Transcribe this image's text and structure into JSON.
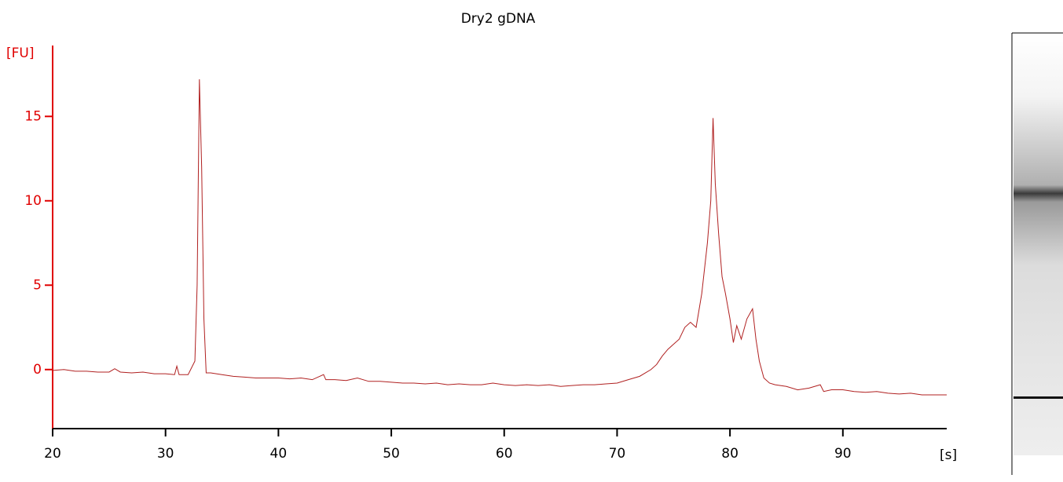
{
  "chart_data": {
    "type": "line",
    "title": "Dry2 gDNA",
    "y_label": "[FU]",
    "x_label": "[s]",
    "xlim": [
      20,
      99.2
    ],
    "ylim": [
      -3.5,
      19.2
    ],
    "xticks": [
      20,
      30,
      40,
      50,
      60,
      70,
      80,
      90
    ],
    "yticks": [
      0,
      5,
      10,
      15
    ],
    "axis_color": "#e00000",
    "series": [
      {
        "color": "#b02020",
        "x": [
          20,
          21,
          22,
          23,
          24,
          25,
          25.5,
          26,
          27,
          28,
          29,
          30,
          30.8,
          31,
          31.2,
          32,
          32.6,
          32.8,
          33,
          33.2,
          33.4,
          33.6,
          34,
          35,
          36,
          37,
          38,
          39,
          40,
          41,
          42,
          43,
          44,
          44.2,
          45,
          46,
          47,
          48,
          49,
          50,
          51,
          52,
          53,
          54,
          55,
          56,
          57,
          58,
          59,
          60,
          61,
          62,
          63,
          64,
          65,
          66,
          67,
          68,
          69,
          70,
          71,
          72,
          73,
          73.5,
          74,
          74.5,
          75,
          75.5,
          76,
          76.5,
          77,
          77.5,
          78,
          78.3,
          78.5,
          78.7,
          79,
          79.3,
          79.6,
          80,
          80.3,
          80.6,
          81,
          81.5,
          82,
          82.3,
          82.6,
          83,
          83.5,
          84,
          85,
          86,
          87,
          88,
          88.3,
          89,
          90,
          91,
          92,
          93,
          94,
          95,
          96,
          97,
          98,
          99.2
        ],
        "values": [
          -0.05,
          0,
          -0.1,
          -0.1,
          -0.15,
          -0.15,
          0.05,
          -0.15,
          -0.2,
          -0.15,
          -0.25,
          -0.25,
          -0.3,
          0.2,
          -0.3,
          -0.3,
          0.5,
          5,
          17.2,
          12,
          3,
          -0.2,
          -0.2,
          -0.3,
          -0.4,
          -0.45,
          -0.5,
          -0.5,
          -0.5,
          -0.55,
          -0.5,
          -0.6,
          -0.3,
          -0.6,
          -0.6,
          -0.65,
          -0.5,
          -0.7,
          -0.7,
          -0.75,
          -0.8,
          -0.8,
          -0.85,
          -0.8,
          -0.9,
          -0.85,
          -0.9,
          -0.9,
          -0.8,
          -0.9,
          -0.95,
          -0.9,
          -0.95,
          -0.9,
          -1,
          -0.95,
          -0.9,
          -0.9,
          -0.85,
          -0.8,
          -0.6,
          -0.4,
          0,
          0.3,
          0.8,
          1.2,
          1.5,
          1.8,
          2.5,
          2.8,
          2.5,
          4.5,
          7.5,
          10,
          14.9,
          11,
          8,
          5.5,
          4.5,
          3,
          1.6,
          2.6,
          1.8,
          3,
          3.6,
          1.8,
          0.5,
          -0.5,
          -0.8,
          -0.9,
          -1,
          -1.2,
          -1.1,
          -0.9,
          -1.3,
          -1.2,
          -1.2,
          -1.3,
          -1.35,
          -1.3,
          -1.4,
          -1.45,
          -1.4,
          -1.5,
          -1.5,
          -1.5
        ]
      }
    ]
  }
}
